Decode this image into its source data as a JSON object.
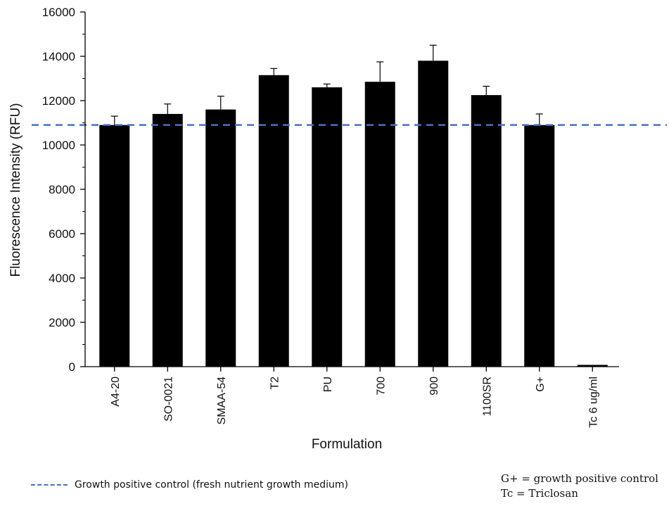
{
  "chart_data": {
    "type": "bar",
    "title": "",
    "xlabel": "Formulation",
    "ylabel": "Fluorescence Intensity (RFU)",
    "ylim": [
      0,
      16000
    ],
    "yticks": [
      0,
      2000,
      4000,
      6000,
      8000,
      10000,
      12000,
      14000,
      16000
    ],
    "categories": [
      "A4-20",
      "SO-0021",
      "SMAA-54",
      "T2",
      "PU",
      "700",
      "900",
      "1100SR",
      "G+",
      "Tc 6 ug/ml"
    ],
    "values": [
      10900,
      11400,
      11600,
      13150,
      12600,
      12850,
      13800,
      12250,
      10900,
      80
    ],
    "error": [
      400,
      450,
      600,
      300,
      150,
      900,
      700,
      400,
      500,
      0
    ],
    "bar_color": "#000000",
    "reference_line": {
      "value": 10900,
      "color": "#4472c4",
      "style": "dashed",
      "label": "Growth positive control (fresh nutrient growth medium)"
    },
    "notes": [
      "G+ = growth positive control",
      "Tc = Triclosan"
    ],
    "grid": false,
    "legend_position": "bottom-left"
  }
}
